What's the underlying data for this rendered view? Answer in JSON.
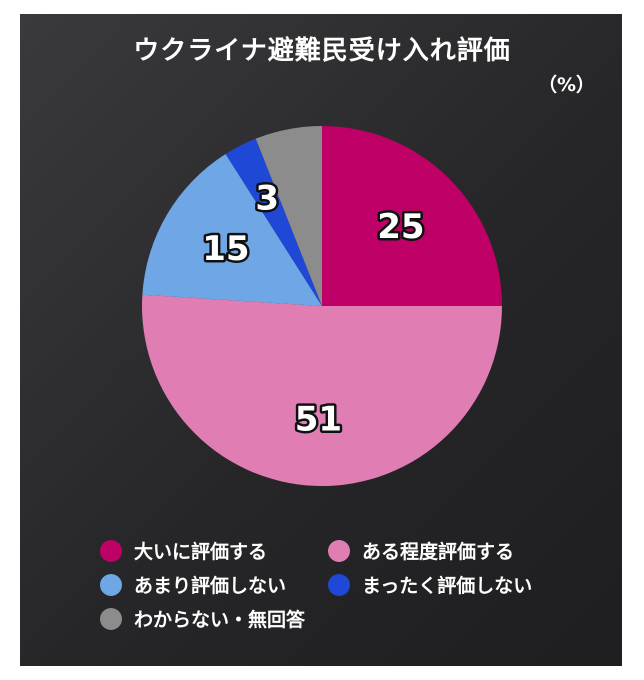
{
  "chart_data": {
    "type": "pie",
    "title": "ウクライナ避難民受け入れ評価",
    "unit_label": "（%）",
    "slices": [
      {
        "label": "大いに評価する",
        "value": 25,
        "color": "#bf0066"
      },
      {
        "label": "ある程度評価する",
        "value": 51,
        "color": "#e07db3"
      },
      {
        "label": "あまり評価しない",
        "value": 15,
        "color": "#6fa6e6"
      },
      {
        "label": "まったく評価しない",
        "value": 3,
        "color": "#1f48d6"
      },
      {
        "label": "わからない・無回答",
        "value": 6,
        "color": "#8c8c8c"
      }
    ],
    "value_labels_shown": [
      "25",
      "51",
      "15",
      "3",
      ""
    ],
    "start": "12 o'clock",
    "direction": "clockwise",
    "legend": {
      "placement": "bottom",
      "columns": 2
    }
  }
}
